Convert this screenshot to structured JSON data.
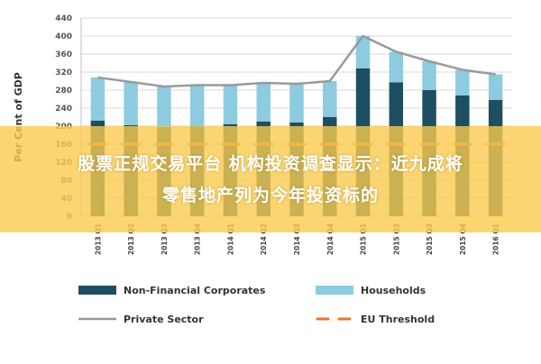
{
  "chart_data": {
    "type": "bar",
    "stacked": true,
    "categories": [
      "2013 Q1",
      "2013 Q2",
      "2013 Q3",
      "2013 Q4",
      "2014 Q1",
      "2014 Q2",
      "2014 Q3",
      "2014 Q4",
      "2015 Q1",
      "2015 Q2",
      "2015 Q3",
      "2015 Q4",
      "2016 Q1"
    ],
    "series": [
      {
        "name": "Non-Financial Corporates",
        "kind": "bar",
        "color": "#1d4e63",
        "values": [
          212,
          202,
          198,
          199,
          204,
          210,
          208,
          220,
          328,
          297,
          280,
          268,
          258
        ]
      },
      {
        "name": "Households",
        "kind": "bar",
        "color": "#8ccbe0",
        "values": [
          96,
          96,
          90,
          92,
          87,
          86,
          86,
          80,
          72,
          68,
          64,
          57,
          57
        ]
      },
      {
        "name": "Private Sector",
        "kind": "line",
        "color": "#9a9a9a",
        "values": [
          308,
          298,
          288,
          291,
          291,
          296,
          294,
          300,
          400,
          365,
          344,
          325,
          315
        ]
      },
      {
        "name": "EU Threshold",
        "kind": "dashed-line",
        "color": "#e8742a",
        "values": [
          160,
          160,
          160,
          160,
          160,
          160,
          160,
          160,
          160,
          160,
          160,
          160,
          160
        ]
      }
    ],
    "ylabel": "Per Cent of GDP",
    "xlabel": "",
    "ylim": [
      0,
      440
    ],
    "yticks": [
      0,
      40,
      80,
      120,
      160,
      200,
      240,
      280,
      320,
      360,
      400,
      440
    ],
    "grid": true,
    "legend_position": "bottom"
  },
  "overlay": {
    "line1": "股票正规交易平台 机构投资调查显示：近九成将",
    "line2": "零售地产列为今年投资标的",
    "color": "#f9ca4e"
  }
}
